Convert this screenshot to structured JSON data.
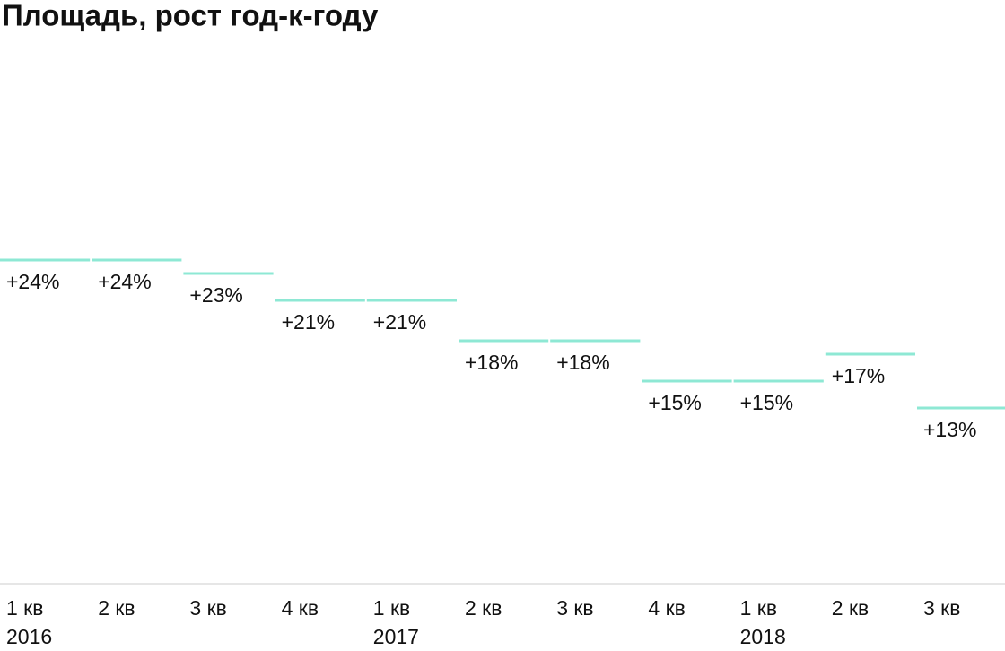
{
  "chart_data": {
    "type": "step",
    "title": "Площадь, рост год-к-году",
    "categories": [
      "1 кв",
      "2 кв",
      "3 кв",
      "4 кв",
      "1 кв",
      "2 кв",
      "3 кв",
      "4 кв",
      "1 кв",
      "2 кв",
      "3 кв"
    ],
    "sublabels": [
      "2016",
      null,
      null,
      null,
      "2017",
      null,
      null,
      null,
      "2018",
      null,
      null
    ],
    "values": [
      24,
      24,
      23,
      21,
      21,
      18,
      18,
      15,
      15,
      17,
      13
    ],
    "value_labels": [
      "+24%",
      "+24%",
      "+23%",
      "+21%",
      "+21%",
      "+18%",
      "+18%",
      "+15%",
      "+15%",
      "+17%",
      "+13%"
    ],
    "color": "#8ee8d4",
    "ylim": [
      0,
      40
    ]
  }
}
